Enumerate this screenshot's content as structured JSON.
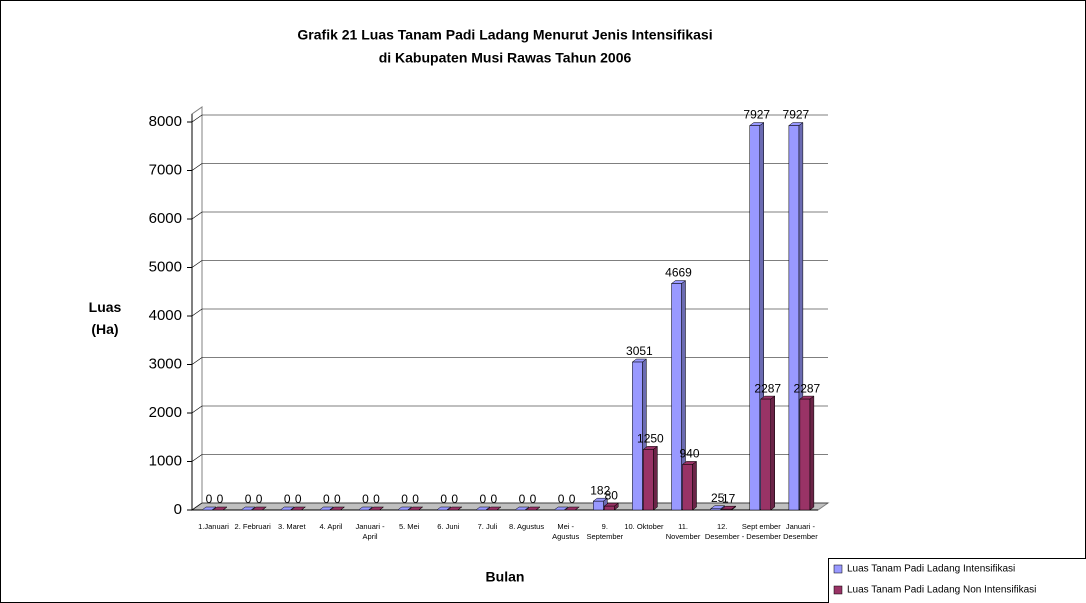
{
  "chart_data": {
    "type": "bar3d",
    "title": "Grafik 21 Luas Tanam Padi Ladang Menurut Jenis Intensifikasi",
    "subtitle": "di Kabupaten Musi Rawas Tahun 2006",
    "y_label": "Luas (Ha)",
    "x_label": "Bulan",
    "categories": [
      "1.Januari",
      "2. Februari",
      "3. Maret",
      "4. April",
      "Januari - April",
      "5. Mei",
      "6. Juni",
      "7. Juli",
      "8. Agustus",
      "Mei - Agustus",
      "9. September",
      "10. Oktober",
      "11. November",
      "12. Desember",
      "Sept ember - Desember",
      "Januari - Desember"
    ],
    "series": [
      {
        "name": "Luas Tanam Padi Ladang Intensifikasi",
        "color": "#9999ff",
        "values": [
          0,
          0,
          0,
          0,
          0,
          0,
          0,
          0,
          0,
          0,
          182,
          3051,
          4669,
          25,
          7927,
          7927
        ]
      },
      {
        "name": "Luas Tanam Padi Ladang Non Intensifikasi",
        "color": "#993366",
        "values": [
          0,
          0,
          0,
          0,
          0,
          0,
          0,
          0,
          0,
          0,
          80,
          1250,
          940,
          17,
          2287,
          2287
        ]
      }
    ],
    "ylim": [
      0,
      8000
    ],
    "yticks": [
      0,
      1000,
      2000,
      3000,
      4000,
      5000,
      6000,
      7000,
      8000
    ],
    "grid": true,
    "legend": "bottom-right"
  }
}
